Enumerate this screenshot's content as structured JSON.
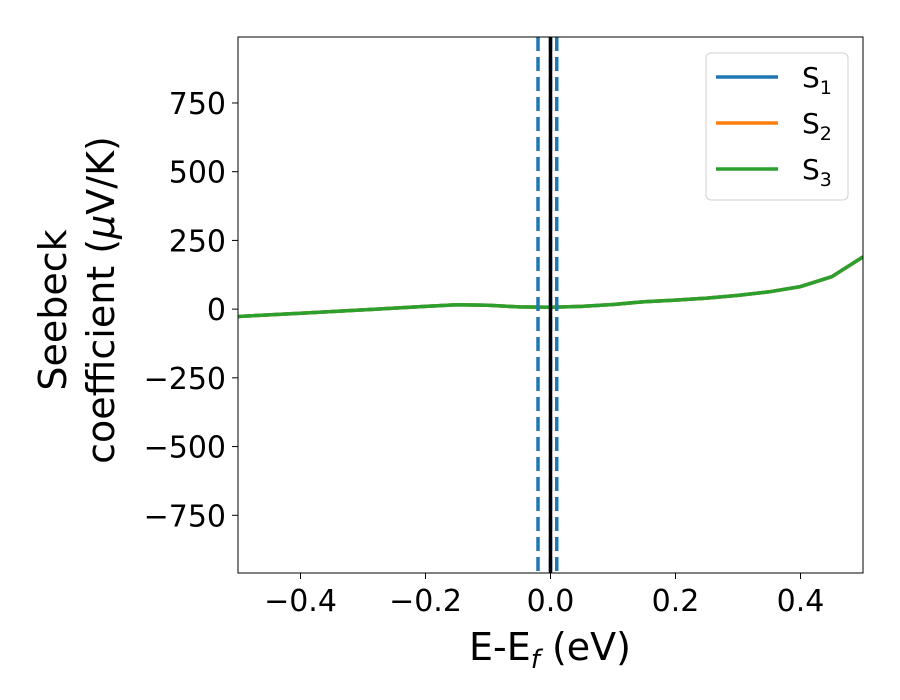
{
  "chart_data": {
    "type": "line",
    "xlabel": {
      "main": "E-E",
      "sub": "f",
      "unit": " (eV)"
    },
    "ylabel": {
      "line1": "Seebeck",
      "line2": "coefficient  (",
      "mu": "μ",
      "line2_end": "V/K)"
    },
    "xlim": [
      -0.5,
      0.5
    ],
    "ylim": [
      -960,
      990
    ],
    "xticks": [
      -0.4,
      -0.2,
      0.0,
      0.2,
      0.4
    ],
    "xtick_labels": [
      "−0.4",
      "−0.2",
      "0.0",
      "0.2",
      "0.4"
    ],
    "yticks": [
      -750,
      -500,
      -250,
      0,
      250,
      500,
      750
    ],
    "ytick_labels": [
      "−750",
      "−500",
      "−250",
      "0",
      "250",
      "500",
      "750"
    ],
    "grid": false,
    "legend_position": "top-right",
    "series": [
      {
        "name": "S",
        "sub": "1",
        "color": "#1f77b4",
        "x": [
          -0.5,
          -0.4,
          -0.3,
          -0.2,
          -0.15,
          -0.1,
          -0.05,
          0.0,
          0.05,
          0.1,
          0.15,
          0.2,
          0.25,
          0.3,
          0.35,
          0.4,
          0.45,
          0.5
        ],
        "y": [
          -27,
          -15,
          -3,
          10,
          16,
          14,
          8,
          7,
          10,
          17,
          27,
          33,
          40,
          50,
          63,
          82,
          118,
          190
        ]
      },
      {
        "name": "S",
        "sub": "2",
        "color": "#ff7f0e",
        "x": [
          -0.5,
          -0.4,
          -0.3,
          -0.2,
          -0.15,
          -0.1,
          -0.05,
          0.0,
          0.05,
          0.1,
          0.15,
          0.2,
          0.25,
          0.3,
          0.35,
          0.4,
          0.45,
          0.5
        ],
        "y": [
          -27,
          -15,
          -3,
          10,
          16,
          14,
          8,
          7,
          10,
          17,
          27,
          33,
          40,
          50,
          63,
          82,
          118,
          190
        ]
      },
      {
        "name": "S",
        "sub": "3",
        "color": "#2ca02c",
        "x": [
          -0.5,
          -0.4,
          -0.3,
          -0.2,
          -0.15,
          -0.1,
          -0.05,
          0.0,
          0.05,
          0.1,
          0.15,
          0.2,
          0.25,
          0.3,
          0.35,
          0.4,
          0.45,
          0.5
        ],
        "y": [
          -27,
          -15,
          -3,
          10,
          16,
          14,
          8,
          7,
          10,
          17,
          27,
          33,
          40,
          50,
          63,
          82,
          118,
          190
        ]
      }
    ],
    "vlines": [
      {
        "x": -0.02,
        "color": "#1f77b4",
        "style": "dashed"
      },
      {
        "x": 0.0,
        "color": "#1f77b4",
        "style": "dashed"
      },
      {
        "x": 0.01,
        "color": "#1f77b4",
        "style": "dashed"
      },
      {
        "x": 0.0,
        "color": "#000000",
        "style": "solid"
      }
    ]
  }
}
